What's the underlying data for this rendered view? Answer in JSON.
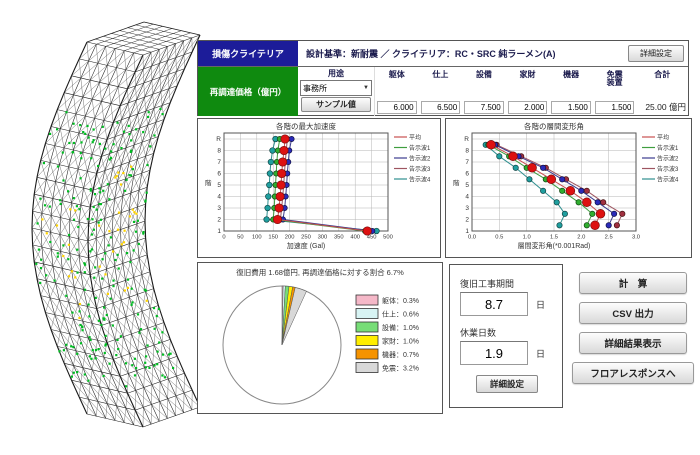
{
  "top_panel": {
    "criteria_header": "損傷クライテリア",
    "criteria_text": "設計基準：新耐震 ／ クライテリア：RC・SRC 純ラーメン(A)",
    "detail_button": "詳細設定",
    "price_header": "再調達価格（億円）",
    "usage_label": "用途",
    "usage_selected": "事務所",
    "sample_button": "サンプル値",
    "columns": [
      "躯体",
      "仕上",
      "設備",
      "家財",
      "機器",
      "免震装置",
      "合計"
    ],
    "values": [
      "6.000",
      "6.500",
      "7.500",
      "2.000",
      "1.500",
      "1.500"
    ],
    "total_value": "25.00 億円"
  },
  "chart_data": [
    {
      "type": "line",
      "title": "各階の最大加速度",
      "xlabel": "加速度 (Gal)",
      "ylabel": "階",
      "xlim": [
        0,
        500
      ],
      "xstep": 50,
      "xdec": 0,
      "yticks": [
        "1",
        "2",
        "3",
        "4",
        "5",
        "6",
        "7",
        "8",
        "R"
      ],
      "yvals": [
        1,
        2,
        3,
        4,
        5,
        6,
        7,
        8,
        9
      ],
      "legend_position": "right",
      "grid": true,
      "series": [
        {
          "name": "平均",
          "color": "#c85050",
          "fill": "#dd1111",
          "stroke": "#7a0d0d",
          "r": 4.2,
          "values": [
            437,
            163,
            168,
            171,
            174,
            176,
            179,
            183,
            186
          ]
        },
        {
          "name": "告示波1",
          "color": "#3f9e3f",
          "fill": "#2fae2f",
          "stroke": "#114411",
          "r": 2.6,
          "values": [
            430,
            150,
            153,
            155,
            157,
            159,
            161,
            164,
            170
          ]
        },
        {
          "name": "告示波2",
          "color": "#3c3c8e",
          "fill": "#2a2ab8",
          "stroke": "#111144",
          "r": 2.6,
          "values": [
            452,
            180,
            185,
            188,
            191,
            193,
            196,
            199,
            206
          ]
        },
        {
          "name": "告示波3",
          "color": "#9e5560",
          "fill": "#a03040",
          "stroke": "#441111",
          "r": 2.6,
          "values": [
            444,
            172,
            176,
            179,
            182,
            184,
            187,
            190,
            193
          ]
        },
        {
          "name": "告示波4",
          "color": "#2f8f8f",
          "fill": "#1f9f9f",
          "stroke": "#114444",
          "r": 2.8,
          "values": [
            465,
            130,
            133,
            135,
            138,
            140,
            143,
            148,
            157
          ]
        }
      ]
    },
    {
      "type": "line",
      "title": "各階の層間変形角",
      "xlabel": "層間変形角(*0.001Rad)",
      "ylabel": "階",
      "xlim": [
        0,
        3.0
      ],
      "xstep": 0.5,
      "xdec": 1,
      "yticks": [
        "1",
        "2",
        "3",
        "4",
        "5",
        "6",
        "7",
        "8",
        "R"
      ],
      "yvals": [
        1.5,
        2.5,
        3.5,
        4.5,
        5.5,
        6.5,
        7.5,
        8.5
      ],
      "legend_position": "right",
      "grid": true,
      "series": [
        {
          "name": "平均",
          "color": "#c85050",
          "fill": "#dd1111",
          "stroke": "#7a0d0d",
          "r": 4.4,
          "values": [
            2.25,
            2.35,
            2.1,
            1.8,
            1.45,
            1.1,
            0.75,
            0.35
          ]
        },
        {
          "name": "告示波1",
          "color": "#3f9e3f",
          "fill": "#2fae2f",
          "stroke": "#114411",
          "r": 2.7,
          "values": [
            2.1,
            2.2,
            1.95,
            1.65,
            1.35,
            1.0,
            0.68,
            0.3
          ]
        },
        {
          "name": "告示波2",
          "color": "#3c3c8e",
          "fill": "#2a2ab8",
          "stroke": "#111144",
          "r": 2.7,
          "values": [
            2.5,
            2.6,
            2.3,
            2.0,
            1.65,
            1.3,
            0.85,
            0.42
          ]
        },
        {
          "name": "告示波3",
          "color": "#9e5560",
          "fill": "#a03040",
          "stroke": "#441111",
          "r": 2.7,
          "values": [
            2.65,
            2.75,
            2.4,
            2.1,
            1.72,
            1.35,
            0.9,
            0.45
          ]
        },
        {
          "name": "告示波4",
          "color": "#2f8f8f",
          "fill": "#1f9f9f",
          "stroke": "#114444",
          "r": 2.7,
          "values": [
            1.6,
            1.7,
            1.55,
            1.3,
            1.05,
            0.8,
            0.5,
            0.25
          ]
        }
      ]
    },
    {
      "type": "pie",
      "title": "復旧費用 1.68億円, 再調達価格に対する割合 6.7%",
      "slices": [
        {
          "label": "躯体",
          "pct": 0.3,
          "color": "#f5b8c8"
        },
        {
          "label": "仕上",
          "pct": 0.6,
          "color": "#d8f4f4"
        },
        {
          "label": "設備",
          "pct": 1.0,
          "color": "#77dd77"
        },
        {
          "label": "家財",
          "pct": 1.0,
          "color": "#ffee00"
        },
        {
          "label": "機器",
          "pct": 0.7,
          "color": "#f59300"
        },
        {
          "label": "免震",
          "pct": 3.2,
          "color": "#d8d8d8"
        }
      ],
      "remainder_pct": 93.3,
      "remainder_color": "#ffffff"
    }
  ],
  "recovery": {
    "period_label": "復旧工事期間",
    "period_value": "8.7",
    "period_unit": "日",
    "closure_label": "休業日数",
    "closure_value": "1.9",
    "closure_unit": "日",
    "detail_button": "詳細設定"
  },
  "actions": [
    "計　算",
    "CSV 出力",
    "詳細結果表示",
    "フロアレスポンスへ"
  ],
  "model": {
    "description": "deformed-frame-wireframe-building",
    "line_color": "#1c1c1c",
    "dot_colors": [
      "#00bb22",
      "#ffd400"
    ]
  },
  "colors": {
    "criteria_header_bg": "#1c1c99",
    "price_header_bg": "#0f8a0f"
  }
}
